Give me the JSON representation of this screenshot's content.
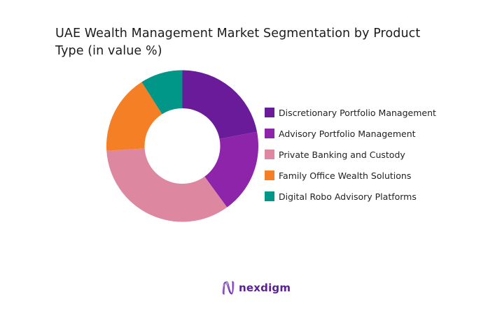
{
  "header": {
    "title": "UAE Wealth Management Market Segmentation by Product Type (in value %)"
  },
  "chart_data": {
    "type": "pie",
    "subtype": "donut",
    "title": "UAE Wealth Management Market Segmentation by Product Type (in value %)",
    "categories": [
      "Discretionary Portfolio Management",
      "Advisory Portfolio Management",
      "Private Banking and Custody",
      "Family Office Wealth Solutions",
      "Digital Robo Advisory Platforms"
    ],
    "values": [
      22,
      18,
      34,
      17,
      9
    ],
    "colors": [
      "#6a1b9a",
      "#8e24aa",
      "#de87a1",
      "#f47f24",
      "#009688"
    ],
    "unit": "%",
    "start_angle": "top (12 o'clock), clockwise",
    "legend_position": "right",
    "data_labels": false
  },
  "legend": {
    "items": [
      {
        "label": "Discretionary Portfolio Management",
        "color": "#6a1b9a"
      },
      {
        "label": "Advisory Portfolio Management",
        "color": "#8e24aa"
      },
      {
        "label": "Private Banking and Custody",
        "color": "#de87a1"
      },
      {
        "label": "Family Office Wealth Solutions",
        "color": "#f47f24"
      },
      {
        "label": "Digital Robo Advisory Platforms",
        "color": "#009688"
      }
    ]
  },
  "branding": {
    "logo_text": "nexdigm",
    "logo_icon": "wave-n-icon",
    "brand_color": "#5b1f99"
  }
}
